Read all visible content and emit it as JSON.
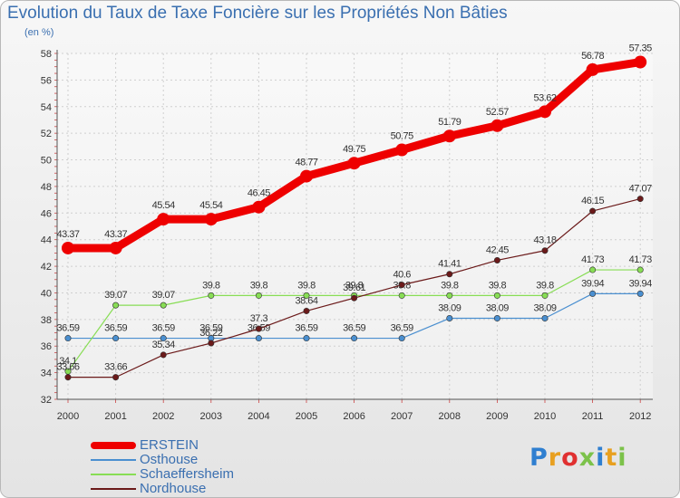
{
  "title": "Evolution du Taux de Taxe Foncière sur les Propriétés Non Bâties",
  "unit_label": "(en %)",
  "logo_text": "Proxiti",
  "chart_data": {
    "type": "line",
    "title": "Evolution du Taux de Taxe Foncière sur les Propriétés Non Bâties",
    "ylabel": "(en %)",
    "xlabel": "",
    "ylim": [
      32,
      58
    ],
    "yticks": [
      "32",
      "34",
      "36",
      "38",
      "40",
      "42",
      "44",
      "46",
      "48",
      "50",
      "52",
      "54",
      "56",
      "58"
    ],
    "x": [
      "2000",
      "2001",
      "2002",
      "2003",
      "2004",
      "2005",
      "2006",
      "2007",
      "2008",
      "2009",
      "2010",
      "2011",
      "2012"
    ],
    "grid": true,
    "legend_position": "bottom-left",
    "series": [
      {
        "name": "ERSTEIN",
        "color": "#ee0000",
        "emphasis": true,
        "values": [
          43.37,
          43.37,
          45.54,
          45.54,
          46.45,
          48.77,
          49.75,
          50.75,
          51.79,
          52.57,
          53.62,
          56.78,
          57.35
        ],
        "labels": [
          "43.37",
          "43.37",
          "45.54",
          "45.54",
          "46.45",
          "48.77",
          "49.75",
          "50.75",
          "51.79",
          "52.57",
          "53.62",
          "56.78",
          "57.35"
        ]
      },
      {
        "name": "Osthouse",
        "color": "#4a8fd0",
        "emphasis": false,
        "values": [
          36.59,
          36.59,
          36.59,
          36.59,
          36.59,
          36.59,
          36.59,
          36.59,
          38.09,
          38.09,
          38.09,
          39.94,
          39.94
        ],
        "labels": [
          "36.59",
          "36.59",
          "36.59",
          "36.59",
          "36.59",
          "36.59",
          "36.59",
          "36.59",
          "38.09",
          "38.09",
          "38.09",
          "39.94",
          "39.94"
        ]
      },
      {
        "name": "Schaeffersheim",
        "color": "#88dd55",
        "emphasis": false,
        "values": [
          34.1,
          39.07,
          39.07,
          39.8,
          39.8,
          39.8,
          39.8,
          39.8,
          39.8,
          39.8,
          39.8,
          41.73,
          41.73
        ],
        "labels": [
          "34.1",
          "39.07",
          "39.07",
          "39.8",
          "39.8",
          "39.8",
          "39.8",
          "39.8",
          "39.8",
          "39.8",
          "39.8",
          "41.73",
          "41.73"
        ]
      },
      {
        "name": "Nordhouse",
        "color": "#6b1a1a",
        "emphasis": false,
        "values": [
          33.66,
          33.66,
          35.34,
          36.22,
          37.3,
          38.64,
          39.61,
          40.6,
          41.41,
          42.45,
          43.18,
          46.15,
          47.07
        ],
        "labels": [
          "33.66",
          "33.66",
          "35.34",
          "36.22",
          "37.3",
          "38.64",
          "39.61",
          "40.6",
          "41.41",
          "42.45",
          "43.18",
          "46.15",
          "47.07"
        ]
      }
    ]
  }
}
